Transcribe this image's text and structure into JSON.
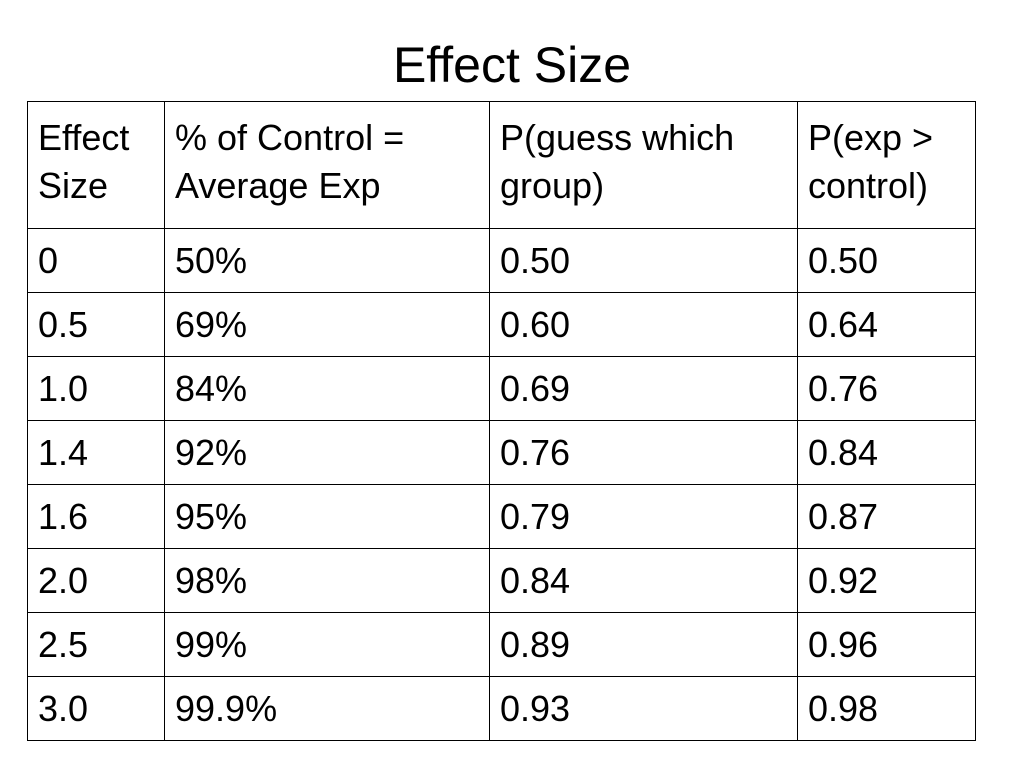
{
  "title": "Effect Size",
  "table": {
    "headers": [
      [
        "Effect",
        "Size"
      ],
      [
        "% of Control =",
        "Average Exp"
      ],
      [
        "P(guess which",
        "group)"
      ],
      [
        "P(exp >",
        "control)"
      ]
    ],
    "rows": [
      [
        "0",
        "50%",
        "0.50",
        "0.50"
      ],
      [
        "0.5",
        "69%",
        "0.60",
        "0.64"
      ],
      [
        "1.0",
        "84%",
        "0.69",
        "0.76"
      ],
      [
        "1.4",
        "92%",
        "0.76",
        "0.84"
      ],
      [
        "1.6",
        "95%",
        "0.79",
        "0.87"
      ],
      [
        "2.0",
        "98%",
        "0.84",
        "0.92"
      ],
      [
        "2.5",
        "99%",
        "0.89",
        "0.96"
      ],
      [
        "3.0",
        "99.9%",
        "0.93",
        "0.98"
      ]
    ]
  }
}
